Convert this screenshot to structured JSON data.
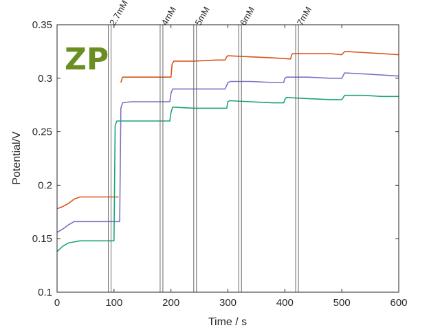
{
  "chart_data": {
    "type": "line",
    "xlabel": "Time / s",
    "ylabel": "Potential/V",
    "xlim": [
      0,
      600
    ],
    "ylim": [
      0.1,
      0.35
    ],
    "xticks": [
      0,
      100,
      200,
      300,
      400,
      500,
      600
    ],
    "yticks": [
      0.1,
      0.15,
      0.2,
      0.25,
      0.3,
      0.35
    ],
    "xtick_labels": [
      "0",
      "100",
      "200",
      "300",
      "400",
      "500",
      "600"
    ],
    "ytick_labels": [
      "0.1",
      "0.15",
      "0.2",
      "0.25",
      "0.3",
      "0.35"
    ],
    "grid": false,
    "logo_text": "ZP",
    "colors": {
      "orange": "#d95319",
      "purple": "#7e6fc5",
      "green": "#1aa37a",
      "marker": "#666666",
      "axis": "#262626",
      "logo": "#6b8e23"
    },
    "markers": [
      {
        "label": "2.7mM",
        "x": 90
      },
      {
        "label": "4mM",
        "x": 181
      },
      {
        "label": "5mM",
        "x": 240
      },
      {
        "label": "6mM",
        "x": 319
      },
      {
        "label": "7mM",
        "x": 419
      }
    ],
    "series": [
      {
        "color_key": "orange",
        "x": [
          0,
          10,
          20,
          30,
          40,
          60,
          80,
          100,
          108,
          110,
          112,
          115,
          130,
          150,
          180,
          200,
          202,
          205,
          240,
          280,
          295,
          298,
          300,
          340,
          380,
          410,
          412,
          414,
          440,
          480,
          500,
          505,
          508,
          540,
          570,
          600
        ],
        "y": [
          0.178,
          0.18,
          0.183,
          0.187,
          0.189,
          0.189,
          0.189,
          0.189,
          0.189,
          null,
          0.296,
          0.301,
          0.301,
          0.301,
          0.301,
          0.301,
          0.313,
          0.316,
          0.316,
          0.317,
          0.317,
          0.32,
          0.321,
          0.32,
          0.319,
          0.318,
          0.322,
          0.323,
          0.323,
          0.323,
          0.322,
          0.325,
          0.325,
          0.324,
          0.323,
          0.322
        ]
      },
      {
        "color_key": "purple",
        "x": [
          0,
          10,
          20,
          30,
          40,
          60,
          80,
          100,
          110,
          112,
          115,
          130,
          150,
          180,
          198,
          200,
          203,
          240,
          280,
          295,
          300,
          305,
          340,
          380,
          398,
          400,
          403,
          440,
          480,
          500,
          505,
          540,
          570,
          600
        ],
        "y": [
          0.156,
          0.159,
          0.163,
          0.166,
          0.166,
          0.166,
          0.166,
          0.166,
          0.166,
          0.272,
          0.277,
          0.278,
          0.278,
          0.278,
          0.278,
          0.286,
          0.29,
          0.29,
          0.29,
          0.29,
          0.296,
          0.297,
          0.297,
          0.296,
          0.296,
          0.3,
          0.301,
          0.301,
          0.3,
          0.3,
          0.305,
          0.304,
          0.303,
          0.302
        ]
      },
      {
        "color_key": "green",
        "x": [
          0,
          10,
          20,
          30,
          40,
          60,
          80,
          98,
          100,
          102,
          105,
          130,
          150,
          180,
          198,
          200,
          203,
          240,
          280,
          298,
          300,
          303,
          340,
          380,
          398,
          400,
          403,
          440,
          480,
          500,
          505,
          540,
          570,
          600
        ],
        "y": [
          0.138,
          0.143,
          0.146,
          0.147,
          0.148,
          0.148,
          0.148,
          0.148,
          0.148,
          0.256,
          0.26,
          0.26,
          0.26,
          0.26,
          0.26,
          0.268,
          0.273,
          0.272,
          0.272,
          0.272,
          0.278,
          0.279,
          0.278,
          0.277,
          0.277,
          0.28,
          0.282,
          0.281,
          0.28,
          0.28,
          0.284,
          0.284,
          0.283,
          0.283
        ]
      }
    ]
  }
}
